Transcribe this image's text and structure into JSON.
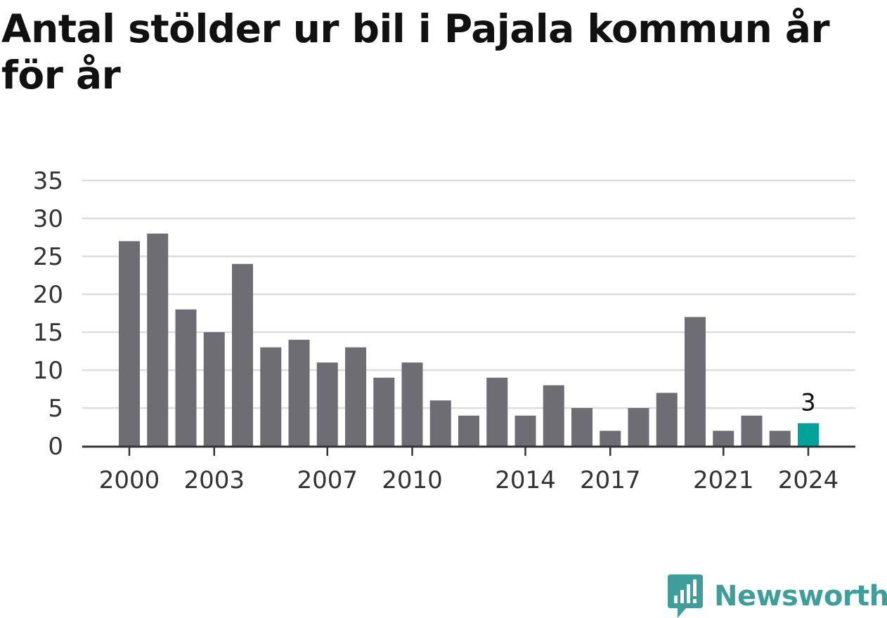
{
  "title": "Antal stölder ur bil i Pajala kommun år för år",
  "brand": {
    "name": "Newsworthy",
    "icon": "newsworthy-logo-icon",
    "color": "#3d9e9a"
  },
  "colors": {
    "bar": "#6e6d73",
    "highlight": "#00a399",
    "grid": "#dddddd",
    "axis": "#333333"
  },
  "chart_data": {
    "type": "bar",
    "categories": [
      "2000",
      "2001",
      "2002",
      "2003",
      "2004",
      "2005",
      "2006",
      "2007",
      "2008",
      "2009",
      "2010",
      "2011",
      "2012",
      "2013",
      "2014",
      "2015",
      "2016",
      "2017",
      "2018",
      "2019",
      "2020",
      "2021",
      "2022",
      "2023",
      "2024"
    ],
    "values": [
      27,
      28,
      18,
      15,
      24,
      13,
      14,
      11,
      13,
      9,
      11,
      6,
      4,
      9,
      4,
      8,
      5,
      2,
      5,
      7,
      17,
      2,
      4,
      2,
      3
    ],
    "highlight": {
      "category": "2024",
      "label": "3"
    },
    "x_tick_labels": [
      "2000",
      "2003",
      "2007",
      "2010",
      "2014",
      "2017",
      "2021",
      "2024"
    ],
    "y_ticks": [
      0,
      5,
      10,
      15,
      20,
      25,
      30,
      35
    ],
    "ylim": [
      0,
      35
    ],
    "xlabel": "",
    "ylabel": "",
    "grid": true,
    "legend": "none"
  }
}
